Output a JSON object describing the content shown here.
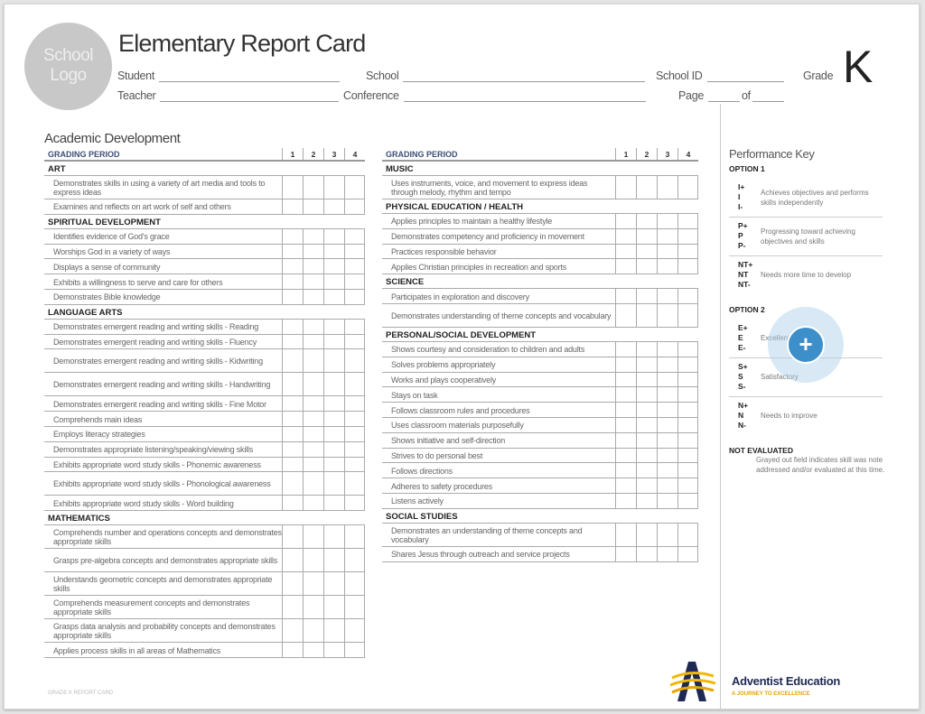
{
  "header": {
    "logo_text": "School Logo",
    "title": "Elementary Report Card",
    "student_label": "Student",
    "school_label": "School",
    "school_id_label": "School ID",
    "grade_label": "Grade",
    "grade_value": "K",
    "teacher_label": "Teacher",
    "conference_label": "Conference",
    "page_label": "Page",
    "of_label": "of"
  },
  "academic_title": "Academic Development",
  "grading_period": "GRADING PERIOD",
  "periods": [
    "1",
    "2",
    "3",
    "4"
  ],
  "left_sections": [
    {
      "title": "ART",
      "items": [
        {
          "text": "Demonstrates skills in using a variety of art media and tools to express ideas",
          "double": true
        },
        {
          "text": "Examines and reflects on art work of self and others"
        }
      ]
    },
    {
      "title": "SPIRITUAL DEVELOPMENT",
      "items": [
        {
          "text": "Identifies evidence of God's grace"
        },
        {
          "text": "Worships God in a variety of ways"
        },
        {
          "text": "Displays a sense of community"
        },
        {
          "text": "Exhibits a willingness to serve and care for others"
        },
        {
          "text": "Demonstrates Bible knowledge"
        }
      ]
    },
    {
      "title": "LANGUAGE ARTS",
      "items": [
        {
          "text": "Demonstrates emergent reading and writing skills - Reading"
        },
        {
          "text": "Demonstrates emergent reading and writing skills - Fluency"
        },
        {
          "text": "Demonstrates emergent reading and writing skills - Kidwriting",
          "double": true
        },
        {
          "text": "Demonstrates emergent reading and writing skills - Handwriting",
          "double": true
        },
        {
          "text": "Demonstrates emergent reading and writing skills - Fine Motor"
        },
        {
          "text": "Comprehends main ideas"
        },
        {
          "text": "Employs literacy strategies"
        },
        {
          "text": "Demonstrates appropriate listening/speaking/viewing skills"
        },
        {
          "text": "Exhibits appropriate word study skills - Phonemic awareness"
        },
        {
          "text": "Exhibits appropriate word study skills - Phonological awareness",
          "double": true
        },
        {
          "text": "Exhibits appropriate word study skills - Word building"
        }
      ]
    },
    {
      "title": "MATHEMATICS",
      "items": [
        {
          "text": "Comprehends number and operations concepts and demonstrates appropriate skills",
          "double": true
        },
        {
          "text": "Grasps pre-algebra concepts and demonstrates appropriate skills",
          "double": true
        },
        {
          "text": "Understands geometric concepts and demonstrates appropriate skills",
          "double": true
        },
        {
          "text": "Comprehends measurement concepts and demonstrates appropriate skills",
          "double": true
        },
        {
          "text": "Grasps data analysis and probability concepts and demonstrates appropriate skills",
          "double": true
        },
        {
          "text": "Applies process skills in all areas of Mathematics"
        }
      ]
    }
  ],
  "right_sections": [
    {
      "title": "MUSIC",
      "items": [
        {
          "text": "Uses instruments, voice, and movement to express ideas through melody, rhythm and tempo",
          "double": true
        }
      ]
    },
    {
      "title": "PHYSICAL EDUCATION / HEALTH",
      "items": [
        {
          "text": "Applies principles to maintain a healthy lifestyle"
        },
        {
          "text": "Demonstrates competency and proficiency in movement"
        },
        {
          "text": "Practices responsible behavior"
        },
        {
          "text": "Applies Christian principles in recreation and sports"
        }
      ]
    },
    {
      "title": "SCIENCE",
      "items": [
        {
          "text": "Participates in exploration and discovery"
        },
        {
          "text": "Demonstrates understanding of theme concepts and vocabulary",
          "double": true
        }
      ]
    },
    {
      "title": "PERSONAL/SOCIAL DEVELOPMENT",
      "items": [
        {
          "text": "Shows courtesy and consideration to children and adults"
        },
        {
          "text": "Solves problems appropriately"
        },
        {
          "text": "Works and plays cooperatively"
        },
        {
          "text": "Stays on task"
        },
        {
          "text": "Follows classroom rules and procedures"
        },
        {
          "text": "Uses classroom materials purposefully"
        },
        {
          "text": "Shows initiative and self-direction"
        },
        {
          "text": "Strives to do personal best"
        },
        {
          "text": "Follows directions"
        },
        {
          "text": "Adheres to safety procedures"
        },
        {
          "text": "Listens actively"
        }
      ]
    },
    {
      "title": "SOCIAL STUDIES",
      "items": [
        {
          "text": "Demonstrates an understanding of theme concepts and vocabulary",
          "double": true
        },
        {
          "text": "Shares Jesus through outreach and service projects"
        }
      ]
    }
  ],
  "key": {
    "title": "Performance Key",
    "option1": "OPTION 1",
    "option1_items": [
      {
        "codes": "I+\nI\nI-",
        "desc": "Achieves objectives and performs skills independently"
      },
      {
        "codes": "P+\nP\nP-",
        "desc": "Progressing toward achieving objectives and skills"
      },
      {
        "codes": "NT+\nNT\nNT-",
        "desc": "Needs more time to develop"
      }
    ],
    "option2": "OPTION 2",
    "option2_items": [
      {
        "codes": "E+\nE\nE-",
        "desc": "Excellent"
      },
      {
        "codes": "S+\nS\nS-",
        "desc": "Satisfactory"
      },
      {
        "codes": "N+\nN\nN-",
        "desc": "Needs to improve"
      }
    ],
    "not_evaluated": "NOT EVALUATED",
    "not_evaluated_desc": "Grayed out field indicates skill was note addressed and/or evaluated at this time."
  },
  "fab": {
    "icon": "plus-icon",
    "color": "#3d8fca"
  },
  "footer": {
    "left": "GRADE K REPORT CARD",
    "brand": "Adventist Education",
    "tagline": "A JOURNEY TO EXCELLENCE",
    "brand_color": "#1e2a55",
    "accent": "#e8a400"
  }
}
